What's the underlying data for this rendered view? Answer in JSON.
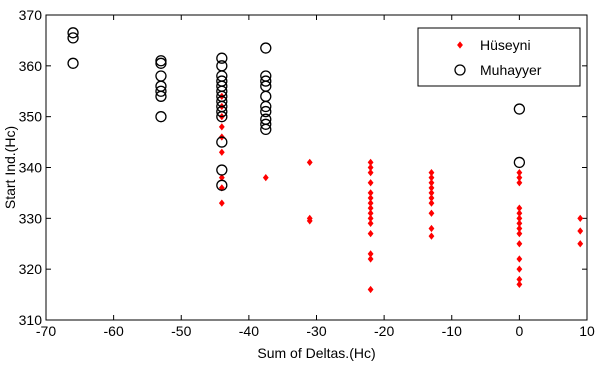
{
  "chart_data": {
    "type": "scatter",
    "title": "",
    "xlabel": "Sum of Deltas.(Hc)",
    "ylabel": "Start Ind.(Hc)",
    "xlim": [
      -70,
      10
    ],
    "ylim": [
      310,
      370
    ],
    "xticks": [
      -70,
      -60,
      -50,
      -40,
      -30,
      -20,
      -10,
      0,
      10
    ],
    "yticks": [
      310,
      320,
      330,
      340,
      350,
      360,
      370
    ],
    "grid": false,
    "legend_position": "top-right",
    "series": [
      {
        "name": "Hüseyni",
        "marker": "diamond",
        "color": "#ff0000",
        "points": [
          [
            -44,
            333
          ],
          [
            -44,
            336
          ],
          [
            -44,
            338
          ],
          [
            -44,
            343
          ],
          [
            -44,
            346
          ],
          [
            -44,
            348
          ],
          [
            -44,
            350
          ],
          [
            -44,
            352
          ],
          [
            -44,
            354
          ],
          [
            -37.5,
            338
          ],
          [
            -31,
            329.5
          ],
          [
            -31,
            330
          ],
          [
            -31,
            341
          ],
          [
            -22,
            316
          ],
          [
            -22,
            322
          ],
          [
            -22,
            323
          ],
          [
            -22,
            327
          ],
          [
            -22,
            329
          ],
          [
            -22,
            330
          ],
          [
            -22,
            331
          ],
          [
            -22,
            332
          ],
          [
            -22,
            333
          ],
          [
            -22,
            334
          ],
          [
            -22,
            335
          ],
          [
            -22,
            337
          ],
          [
            -22,
            339
          ],
          [
            -22,
            340
          ],
          [
            -22,
            341
          ],
          [
            -13,
            326.5
          ],
          [
            -13,
            328
          ],
          [
            -13,
            331
          ],
          [
            -13,
            333
          ],
          [
            -13,
            334
          ],
          [
            -13,
            335
          ],
          [
            -13,
            336
          ],
          [
            -13,
            337
          ],
          [
            -13,
            338
          ],
          [
            -13,
            339
          ],
          [
            0,
            317
          ],
          [
            0,
            318
          ],
          [
            0,
            320
          ],
          [
            0,
            322
          ],
          [
            0,
            325
          ],
          [
            0,
            327
          ],
          [
            0,
            328
          ],
          [
            0,
            329
          ],
          [
            0,
            330
          ],
          [
            0,
            331
          ],
          [
            0,
            332
          ],
          [
            0,
            337
          ],
          [
            0,
            338
          ],
          [
            0,
            339
          ],
          [
            9,
            325
          ],
          [
            9,
            327.5
          ],
          [
            9,
            330
          ]
        ]
      },
      {
        "name": "Muhayyer",
        "marker": "circle",
        "color": "#000000",
        "points": [
          [
            -66,
            360.5
          ],
          [
            -66,
            365.5
          ],
          [
            -66,
            366.5
          ],
          [
            -53,
            350
          ],
          [
            -53,
            354
          ],
          [
            -53,
            355
          ],
          [
            -53,
            356
          ],
          [
            -53,
            358
          ],
          [
            -53,
            360.5
          ],
          [
            -53,
            361
          ],
          [
            -44,
            336.5
          ],
          [
            -44,
            339.5
          ],
          [
            -44,
            345
          ],
          [
            -44,
            350
          ],
          [
            -44,
            351
          ],
          [
            -44,
            352
          ],
          [
            -44,
            353
          ],
          [
            -44,
            354
          ],
          [
            -44,
            355
          ],
          [
            -44,
            356
          ],
          [
            -44,
            357
          ],
          [
            -44,
            358
          ],
          [
            -44,
            360
          ],
          [
            -44,
            361.5
          ],
          [
            -37.5,
            347.5
          ],
          [
            -37.5,
            348.5
          ],
          [
            -37.5,
            349.5
          ],
          [
            -37.5,
            351
          ],
          [
            -37.5,
            352
          ],
          [
            -37.5,
            354
          ],
          [
            -37.5,
            356
          ],
          [
            -37.5,
            357
          ],
          [
            -37.5,
            358
          ],
          [
            -37.5,
            363.5
          ],
          [
            0,
            341
          ],
          [
            0,
            351.5
          ]
        ]
      }
    ]
  }
}
